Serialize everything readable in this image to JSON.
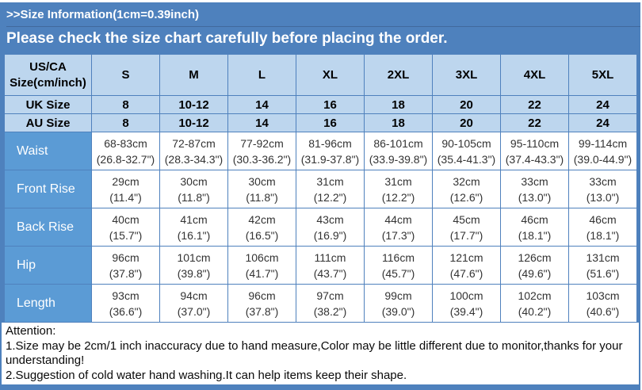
{
  "banner": {
    "title": ">>Size Information(1cm=0.39inch)",
    "subtitle": "Please check the size chart carefully before placing the order."
  },
  "table": {
    "header": {
      "label": "US/CA Size(cm/inch)",
      "sizes": [
        "S",
        "M",
        "L",
        "XL",
        "2XL",
        "3XL",
        "4XL",
        "5XL"
      ]
    },
    "size_rows": [
      {
        "label": "UK Size",
        "values": [
          "8",
          "10-12",
          "14",
          "16",
          "18",
          "20",
          "22",
          "24"
        ]
      },
      {
        "label": "AU Size",
        "values": [
          "8",
          "10-12",
          "14",
          "16",
          "18",
          "20",
          "22",
          "24"
        ]
      }
    ],
    "measure_rows": [
      {
        "label": "Waist",
        "cells": [
          {
            "cm": "68-83cm",
            "in": "(26.8-32.7\")"
          },
          {
            "cm": "72-87cm",
            "in": "(28.3-34.3\")"
          },
          {
            "cm": "77-92cm",
            "in": "(30.3-36.2\")"
          },
          {
            "cm": "81-96cm",
            "in": "(31.9-37.8\")"
          },
          {
            "cm": "86-101cm",
            "in": "(33.9-39.8\")"
          },
          {
            "cm": "90-105cm",
            "in": "(35.4-41.3\")"
          },
          {
            "cm": "95-110cm",
            "in": "(37.4-43.3\")"
          },
          {
            "cm": "99-114cm",
            "in": "(39.0-44.9\")"
          }
        ]
      },
      {
        "label": "Front Rise",
        "cells": [
          {
            "cm": "29cm",
            "in": "(11.4\")"
          },
          {
            "cm": "30cm",
            "in": "(11.8\")"
          },
          {
            "cm": "30cm",
            "in": "(11.8\")"
          },
          {
            "cm": "31cm",
            "in": "(12.2\")"
          },
          {
            "cm": "31cm",
            "in": "(12.2\")"
          },
          {
            "cm": "32cm",
            "in": "(12.6\")"
          },
          {
            "cm": "33cm",
            "in": "(13.0\")"
          },
          {
            "cm": "33cm",
            "in": "(13.0\")"
          }
        ]
      },
      {
        "label": "Back Rise",
        "cells": [
          {
            "cm": "40cm",
            "in": "(15.7\")"
          },
          {
            "cm": "41cm",
            "in": "(16.1\")"
          },
          {
            "cm": "42cm",
            "in": "(16.5\")"
          },
          {
            "cm": "43cm",
            "in": "(16.9\")"
          },
          {
            "cm": "44cm",
            "in": "(17.3\")"
          },
          {
            "cm": "45cm",
            "in": "(17.7\")"
          },
          {
            "cm": "46cm",
            "in": "(18.1\")"
          },
          {
            "cm": "46cm",
            "in": "(18.1\")"
          }
        ]
      },
      {
        "label": "Hip",
        "cells": [
          {
            "cm": "96cm",
            "in": "(37.8\")"
          },
          {
            "cm": "101cm",
            "in": "(39.8\")"
          },
          {
            "cm": "106cm",
            "in": "(41.7\")"
          },
          {
            "cm": "111cm",
            "in": "(43.7\")"
          },
          {
            "cm": "116cm",
            "in": "(45.7\")"
          },
          {
            "cm": "121cm",
            "in": "(47.6\")"
          },
          {
            "cm": "126cm",
            "in": "(49.6\")"
          },
          {
            "cm": "131cm",
            "in": "(51.6\")"
          }
        ]
      },
      {
        "label": "Length",
        "cells": [
          {
            "cm": "93cm",
            "in": "(36.6\")"
          },
          {
            "cm": "94cm",
            "in": "(37.0\")"
          },
          {
            "cm": "96cm",
            "in": "(37.8\")"
          },
          {
            "cm": "97cm",
            "in": "(38.2\")"
          },
          {
            "cm": "99cm",
            "in": "(39.0\")"
          },
          {
            "cm": "100cm",
            "in": "(39.4\")"
          },
          {
            "cm": "102cm",
            "in": "(40.2\")"
          },
          {
            "cm": "103cm",
            "in": "(40.6\")"
          }
        ]
      }
    ]
  },
  "attention": {
    "heading": "Attention:",
    "notes": [
      "1.Size may be 2cm/1 inch inaccuracy due to hand measure,Color may be little different due to monitor,thanks for your understanding!",
      "2.Suggestion of cold water hand washing.It can help items keep their shape."
    ]
  },
  "colors": {
    "banner_blue": "#4e81bd",
    "light_cell_blue": "#bdd6ee",
    "label_cell_blue": "#5b9bd5",
    "grid_border_blue": "#4f81bd",
    "data_text": "#333333"
  }
}
